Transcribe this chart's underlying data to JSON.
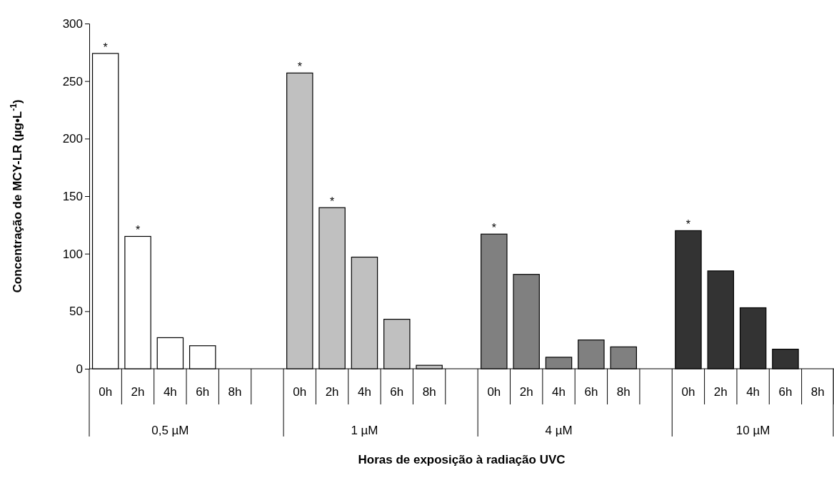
{
  "chart_data": {
    "type": "bar",
    "xlabel": "Horas de exposição à radiação UVC",
    "ylabel": "Concentração  de MCY-LR (µg•L$^{-1}$)",
    "categories": [
      "0h",
      "2h",
      "4h",
      "6h",
      "8h",
      null,
      "0h",
      "2h",
      "4h",
      "6h",
      "8h",
      null,
      "0h",
      "2h",
      "4h",
      "6h",
      "8h",
      null,
      "0h",
      "2h",
      "4h",
      "6h",
      "8h"
    ],
    "ylim": [
      0,
      300
    ],
    "yticks": [
      0,
      50,
      100,
      150,
      200,
      250,
      300
    ],
    "grid": false,
    "annotations": [
      "0,5 µM",
      "1 µM",
      "4 µM",
      "10 µM"
    ],
    "series": [
      {
        "color": "#ffffff",
        "values": [
          274,
          115,
          27,
          20,
          null,
          null,
          null,
          null,
          null,
          null,
          null,
          null,
          null,
          null,
          null,
          null,
          null,
          null,
          null,
          null,
          null,
          null,
          null
        ],
        "value_labels": [
          "*",
          "*",
          null,
          null,
          null,
          null,
          null,
          null,
          null,
          null,
          null,
          null,
          null,
          null,
          null,
          null,
          null,
          null,
          null,
          null,
          null,
          null,
          null
        ]
      },
      {
        "color": "#c0c0c0",
        "values": [
          null,
          null,
          null,
          null,
          null,
          null,
          257,
          140,
          97,
          43,
          3,
          null,
          null,
          null,
          null,
          null,
          null,
          null,
          null,
          null,
          null,
          null,
          null
        ],
        "value_labels": [
          null,
          null,
          null,
          null,
          null,
          null,
          "*",
          "*",
          null,
          null,
          null,
          null,
          null,
          null,
          null,
          null,
          null,
          null,
          null,
          null,
          null,
          null,
          null
        ]
      },
      {
        "color": "#808080",
        "values": [
          null,
          null,
          null,
          null,
          null,
          null,
          null,
          null,
          null,
          null,
          null,
          null,
          117,
          82,
          10,
          25,
          19,
          null,
          null,
          null,
          null,
          null,
          null
        ],
        "value_labels": [
          null,
          null,
          null,
          null,
          null,
          null,
          null,
          null,
          null,
          null,
          null,
          null,
          "*",
          null,
          null,
          null,
          null,
          null,
          null,
          null,
          null,
          null,
          null
        ]
      },
      {
        "color": "#333333",
        "values": [
          null,
          null,
          null,
          null,
          null,
          null,
          null,
          null,
          null,
          null,
          null,
          null,
          null,
          null,
          null,
          null,
          null,
          null,
          120,
          85,
          53,
          17,
          null
        ],
        "value_labels": [
          null,
          null,
          null,
          null,
          null,
          null,
          null,
          null,
          null,
          null,
          null,
          null,
          null,
          null,
          null,
          null,
          null,
          null,
          "*",
          null,
          null,
          null,
          null
        ]
      }
    ]
  }
}
